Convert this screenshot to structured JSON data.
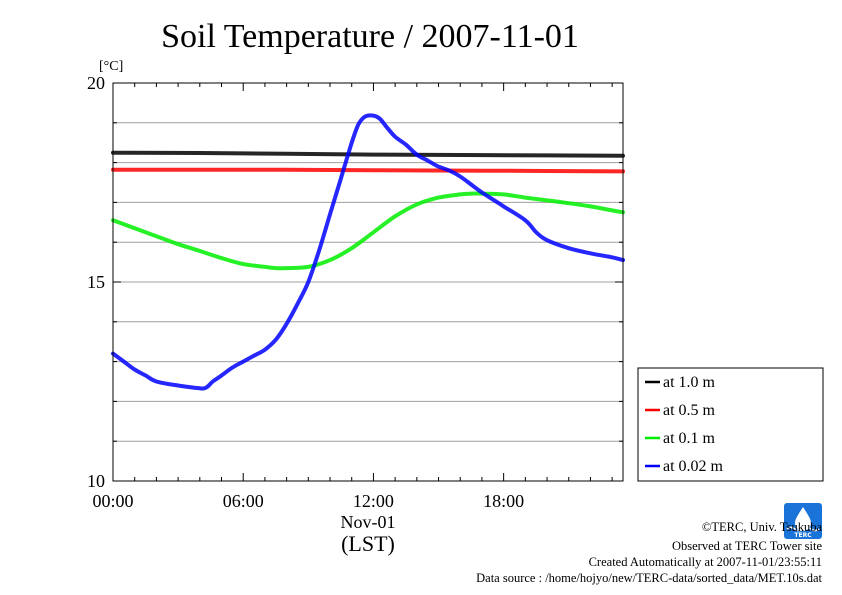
{
  "chart_data": {
    "type": "line",
    "title": "Soil Temperature / 2007-11-01",
    "unit": "[°C]",
    "xlabel_date": "Nov-01",
    "xlabel": "(LST)",
    "x_ticks": [
      "00:00",
      "06:00",
      "12:00",
      "18:00"
    ],
    "y_ticks": [
      20,
      15,
      10
    ],
    "ylim": [
      10,
      20
    ],
    "xlim_hours": [
      0,
      23.5
    ],
    "grid": true,
    "legend_position": "bottom-right outside",
    "series": [
      {
        "name": "at 1.0 m",
        "color": "#000000",
        "x": [
          0,
          4,
          8,
          12,
          16,
          20,
          23.5
        ],
        "y": [
          18.25,
          18.24,
          18.22,
          18.2,
          18.19,
          18.18,
          18.17
        ]
      },
      {
        "name": "at 0.5 m",
        "color": "#ff0000",
        "x": [
          0,
          4,
          8,
          12,
          16,
          20,
          23.5
        ],
        "y": [
          17.82,
          17.82,
          17.82,
          17.81,
          17.8,
          17.79,
          17.78
        ]
      },
      {
        "name": "at 0.1 m",
        "color": "#00ee00",
        "x": [
          0,
          1,
          2,
          3,
          4,
          5,
          6,
          7,
          7.5,
          8,
          9,
          10,
          11,
          12,
          13,
          14,
          15,
          16,
          16.5,
          17,
          18,
          19,
          20,
          21,
          22,
          23,
          23.5
        ],
        "y": [
          16.55,
          16.35,
          16.15,
          15.95,
          15.78,
          15.6,
          15.45,
          15.38,
          15.35,
          15.35,
          15.38,
          15.55,
          15.85,
          16.25,
          16.65,
          16.95,
          17.12,
          17.2,
          17.22,
          17.22,
          17.2,
          17.12,
          17.05,
          16.98,
          16.9,
          16.8,
          16.75
        ]
      },
      {
        "name": "at 0.02 m",
        "color": "#0000ff",
        "x": [
          0,
          0.5,
          1,
          1.5,
          2,
          3,
          4,
          4.3,
          4.6,
          5,
          5.5,
          6,
          6.5,
          7,
          7.5,
          8,
          8.5,
          9,
          9.5,
          10,
          10.5,
          11,
          11.3,
          11.6,
          12,
          12.3,
          12.6,
          13,
          13.5,
          14,
          14.5,
          15,
          15.5,
          16,
          16.5,
          17,
          18,
          19,
          19.5,
          20,
          21,
          22,
          23,
          23.5
        ],
        "y": [
          13.2,
          13.0,
          12.8,
          12.65,
          12.5,
          12.4,
          12.33,
          12.35,
          12.5,
          12.65,
          12.85,
          13.0,
          13.15,
          13.3,
          13.55,
          13.95,
          14.45,
          15.0,
          15.8,
          16.7,
          17.6,
          18.5,
          18.95,
          19.15,
          19.18,
          19.1,
          18.9,
          18.65,
          18.45,
          18.2,
          18.05,
          17.9,
          17.8,
          17.65,
          17.45,
          17.25,
          16.9,
          16.55,
          16.25,
          16.05,
          15.85,
          15.72,
          15.62,
          15.55
        ]
      }
    ]
  },
  "footer": {
    "copyright": "©TERC, Univ. Tsukuba",
    "site": "Observed at TERC Tower site",
    "created": "Created Automatically at 2007-11-01/23:55:11",
    "source": "Data source : /home/hojyo/new/TERC-data/sorted_data/MET.10s.dat",
    "logo_text": "TERC",
    "logo_color": "#1a73d9"
  }
}
